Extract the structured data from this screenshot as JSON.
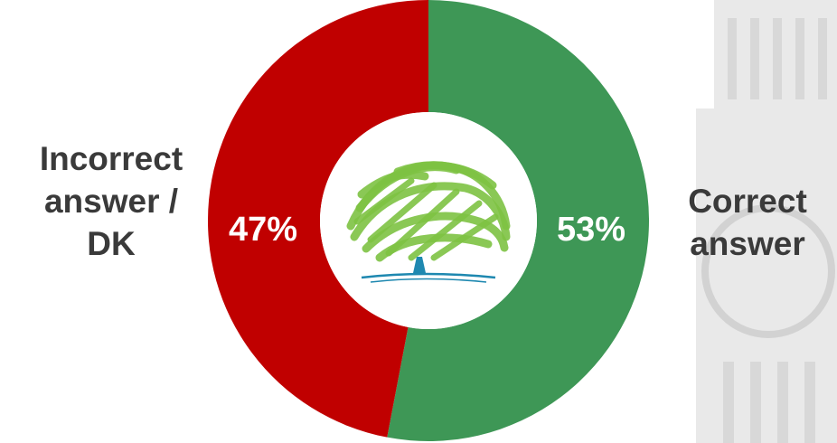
{
  "chart_data": {
    "type": "pie",
    "style": "donut",
    "title": "",
    "slices": [
      {
        "label": "Correct answer",
        "value": 53,
        "display": "53%",
        "color": "#3e9756"
      },
      {
        "label": "Incorrect answer / DK",
        "value": 47,
        "display": "47%",
        "color": "#c00000"
      }
    ],
    "legend": "none",
    "center_icon": "conservative-tree-logo-icon",
    "labels": {
      "left": [
        "Incorrect",
        "answer /",
        "DK"
      ],
      "right": [
        "Correct",
        "answer"
      ]
    }
  },
  "colors": {
    "correct": "#3e9756",
    "incorrect": "#c00000",
    "text": "#3a3a3a",
    "percent_text": "#ffffff",
    "logo_green": "#7dc242",
    "logo_blue": "#1e88b0"
  },
  "background_icon": "big-ben-tower-icon"
}
